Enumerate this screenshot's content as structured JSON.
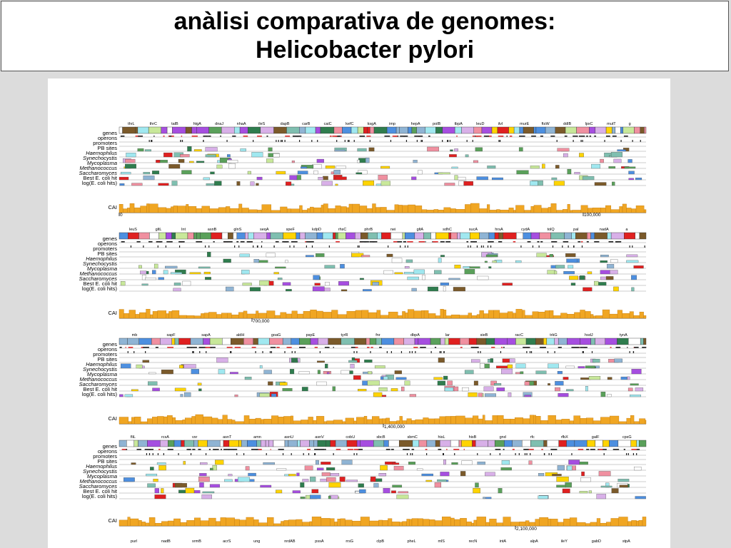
{
  "title": {
    "line1": "anàlisi comparativa de genomes:",
    "line2": "Helicobacter pylori"
  },
  "figure": {
    "track_labels": [
      {
        "text": "genes",
        "italic": false
      },
      {
        "text": "operons",
        "italic": false
      },
      {
        "text": "promoters",
        "italic": false
      },
      {
        "text": "PB sites",
        "italic": false
      },
      {
        "text": "Haemophilus",
        "italic": true
      },
      {
        "text": "Synechocystis",
        "italic": true
      },
      {
        "text": "Mycoplasma",
        "italic": true
      },
      {
        "text": "Methanococcus",
        "italic": true
      },
      {
        "text": "Saccharomyces",
        "italic": true
      },
      {
        "text": "Best E. coli hit",
        "italic": false
      },
      {
        "text": "log(E. coli hits)",
        "italic": false
      }
    ],
    "cai_label": "CAI",
    "panels": [
      {
        "genes": [
          "thrL",
          "thrC",
          "talB",
          "htgA",
          "dnaJ",
          "nhaA",
          "ileS",
          "dapB",
          "carB",
          "caiC",
          "kefC",
          "ksgA",
          "imp",
          "hepA",
          "polB",
          "tbpA",
          "leuD",
          "ilvI",
          "murE",
          "ftsW",
          "ddlB",
          "lpxC",
          "mutT",
          "g"
        ],
        "scale_labels": [
          "0",
          "100,000"
        ]
      },
      {
        "genes": [
          "leuS",
          "gltL",
          "lnt",
          "asnB",
          "glnS",
          "seqA",
          "speF",
          "kdpD",
          "rhsC",
          "phrB",
          "nei",
          "gltA",
          "sdhC",
          "sucA",
          "hrsA",
          "cydA",
          "tolQ",
          "pal",
          "nadA",
          "a"
        ],
        "scale_labels": [
          "700,000"
        ]
      },
      {
        "genes": [
          "mb",
          "sapF",
          "sapA",
          "aldH",
          "goaG",
          "pspE",
          "tyrR",
          "fnr",
          "dbpA",
          "lar",
          "sieB",
          "racC",
          "trkG",
          "hsdJ",
          "tynA"
        ],
        "scale_labels": [
          "1,400,000"
        ]
      },
      {
        "genes": [
          "fliL",
          "rcsA",
          "vsr",
          "asnT",
          "amn",
          "asnU",
          "asnV",
          "cobU",
          "sbcB",
          "sbmC",
          "hisL",
          "hisB",
          "gnd",
          "rfc",
          "rfbX",
          "galF",
          "cpsG"
        ],
        "scale_labels": [
          "2,100,000"
        ]
      },
      {
        "genes": [
          "purl",
          "nadB",
          "srmB",
          "acrS",
          "ung",
          "nrdAB",
          "pssA",
          "rrsG",
          "clpB",
          "pheL",
          "mlS",
          "recN",
          "intA",
          "alpA",
          "ileY",
          "gabD",
          "stpA"
        ],
        "scale_labels": []
      }
    ],
    "colors": {
      "bar_fill": "#f0a623",
      "bar_edge": "#c07a10",
      "gene_palette": [
        "#7b5a2a",
        "#8fb4d4",
        "#a64ee0",
        "#5aa05a",
        "#2f7d4e",
        "#ffd400",
        "#4d8fe0",
        "#e02020",
        "#a0e8f0",
        "#f090a0",
        "#c8e89a",
        "#ffffff",
        "#7fbfb0",
        "#d8b0e8"
      ]
    }
  }
}
